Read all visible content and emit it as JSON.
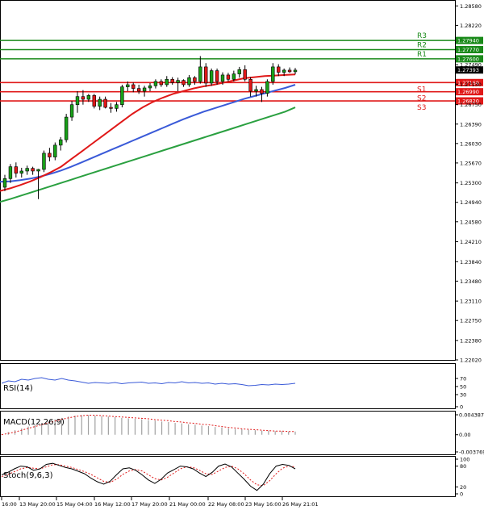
{
  "chart_data": [
    {
      "type": "candlestick",
      "panel": "price",
      "ylim": [
        1.2202,
        1.286
      ],
      "y_ticks": [
        "1.28580",
        "1.28220",
        "1.27490",
        "1.27130",
        "1.26750",
        "1.26390",
        "1.26030",
        "1.25670",
        "1.25300",
        "1.24940",
        "1.24580",
        "1.24210",
        "1.23840",
        "1.23480",
        "1.23110",
        "1.22750",
        "1.22380",
        "1.22020"
      ],
      "x_labels": [
        "16:00",
        "13 May 20:00",
        "15 May 04:00",
        "16 May 12:00",
        "17 May 20:00",
        "21 May 00:00",
        "22 May 08:00",
        "23 May 16:00",
        "26 May 21:01"
      ],
      "candles": [
        [
          1.2522,
          1.2545,
          1.2515,
          1.2538
        ],
        [
          1.2538,
          1.2565,
          1.253,
          1.256
        ],
        [
          1.256,
          1.2568,
          1.254,
          1.2548
        ],
        [
          1.2548,
          1.2558,
          1.254,
          1.2552
        ],
        [
          1.2552,
          1.2562,
          1.2545,
          1.2557
        ],
        [
          1.2557,
          1.256,
          1.2545,
          1.2552
        ],
        [
          1.2552,
          1.2556,
          1.25,
          1.2555
        ],
        [
          1.2555,
          1.259,
          1.255,
          1.2585
        ],
        [
          1.2585,
          1.2595,
          1.257,
          1.2578
        ],
        [
          1.2578,
          1.2605,
          1.2572,
          1.26
        ],
        [
          1.26,
          1.2615,
          1.259,
          1.261
        ],
        [
          1.261,
          1.2658,
          1.2605,
          1.2652
        ],
        [
          1.2652,
          1.2682,
          1.2645,
          1.2675
        ],
        [
          1.2675,
          1.27,
          1.266,
          1.269
        ],
        [
          1.269,
          1.2702,
          1.2675,
          1.2685
        ],
        [
          1.2685,
          1.2695,
          1.268,
          1.2692
        ],
        [
          1.2692,
          1.2695,
          1.2668,
          1.2672
        ],
        [
          1.2672,
          1.269,
          1.2665,
          1.2685
        ],
        [
          1.2685,
          1.269,
          1.2668,
          1.267
        ],
        [
          1.267,
          1.2678,
          1.266,
          1.2668
        ],
        [
          1.2668,
          1.268,
          1.2662,
          1.2675
        ],
        [
          1.2675,
          1.2712,
          1.267,
          1.2708
        ],
        [
          1.2708,
          1.2718,
          1.27,
          1.2712
        ],
        [
          1.2712,
          1.2716,
          1.2698,
          1.2705
        ],
        [
          1.2705,
          1.2712,
          1.2695,
          1.27
        ],
        [
          1.27,
          1.271,
          1.269,
          1.2706
        ],
        [
          1.2706,
          1.2715,
          1.27,
          1.271
        ],
        [
          1.271,
          1.2722,
          1.2705,
          1.2718
        ],
        [
          1.2718,
          1.2722,
          1.2708,
          1.2712
        ],
        [
          1.2712,
          1.2728,
          1.2708,
          1.2722
        ],
        [
          1.2722,
          1.2726,
          1.2712,
          1.2716
        ],
        [
          1.2716,
          1.2725,
          1.27,
          1.272
        ],
        [
          1.272,
          1.2722,
          1.2708,
          1.2712
        ],
        [
          1.2712,
          1.273,
          1.2708,
          1.2725
        ],
        [
          1.2725,
          1.2728,
          1.2712,
          1.2718
        ],
        [
          1.2718,
          1.2765,
          1.2714,
          1.2745
        ],
        [
          1.2745,
          1.2752,
          1.2708,
          1.2715
        ],
        [
          1.2715,
          1.2742,
          1.271,
          1.2738
        ],
        [
          1.2738,
          1.2742,
          1.2712,
          1.2718
        ],
        [
          1.2718,
          1.2735,
          1.2712,
          1.273
        ],
        [
          1.273,
          1.2734,
          1.2718,
          1.2722
        ],
        [
          1.2722,
          1.2738,
          1.2718,
          1.2732
        ],
        [
          1.2732,
          1.2745,
          1.2725,
          1.274
        ],
        [
          1.274,
          1.2748,
          1.2718,
          1.2722
        ],
        [
          1.2722,
          1.2726,
          1.269,
          1.27
        ],
        [
          1.27,
          1.271,
          1.269,
          1.2703
        ],
        [
          1.2703,
          1.2708,
          1.268,
          1.2696
        ],
        [
          1.2696,
          1.2722,
          1.269,
          1.2718
        ],
        [
          1.2718,
          1.2752,
          1.2712,
          1.2745
        ],
        [
          1.2745,
          1.275,
          1.2728,
          1.2735
        ],
        [
          1.2735,
          1.2742,
          1.2728,
          1.2739
        ],
        [
          1.2739,
          1.2744,
          1.2734,
          1.2736
        ],
        [
          1.2736,
          1.2743,
          1.2731,
          1.2739
        ]
      ],
      "sma_red": [
        1.2515,
        1.252,
        1.2526,
        1.2533,
        1.2541,
        1.255,
        1.256,
        1.2574,
        1.2588,
        1.2602,
        1.2616,
        1.263,
        1.2644,
        1.2658,
        1.267,
        1.268,
        1.2688,
        1.2695,
        1.27,
        1.2705,
        1.2709,
        1.2712,
        1.2716,
        1.272,
        1.2724,
        1.2726,
        1.2728,
        1.2729,
        1.273,
        1.2731
      ],
      "sma_blue": [
        1.2532,
        1.2533,
        1.2535,
        1.2538,
        1.2542,
        1.2547,
        1.2553,
        1.256,
        1.2568,
        1.2576,
        1.2584,
        1.2592,
        1.26,
        1.2608,
        1.2616,
        1.2624,
        1.2632,
        1.264,
        1.2648,
        1.2655,
        1.2662,
        1.2668,
        1.2674,
        1.268,
        1.2686,
        1.2691,
        1.2696,
        1.2701,
        1.2706,
        1.2712
      ],
      "sma_green": [
        1.2495,
        1.25,
        1.2506,
        1.2512,
        1.2518,
        1.2524,
        1.253,
        1.2536,
        1.2542,
        1.2548,
        1.2554,
        1.256,
        1.2566,
        1.2572,
        1.2578,
        1.2584,
        1.259,
        1.2596,
        1.2602,
        1.2608,
        1.2614,
        1.262,
        1.2626,
        1.2632,
        1.2638,
        1.2644,
        1.265,
        1.2656,
        1.2662,
        1.267
      ],
      "levels": [
        {
          "name": "R3",
          "value": 1.2794,
          "label": "1.27940",
          "color": "#1a8a1a"
        },
        {
          "name": "R2",
          "value": 1.2777,
          "label": "1.27770",
          "color": "#1a8a1a"
        },
        {
          "name": "R1",
          "value": 1.276,
          "label": "1.27600",
          "color": "#1a8a1a"
        },
        {
          "name": "S1",
          "value": 1.2716,
          "label": "1.27160",
          "color": "#e01818"
        },
        {
          "name": "S2",
          "value": 1.2699,
          "label": "1.26990",
          "color": "#e01818"
        },
        {
          "name": "S3",
          "value": 1.2682,
          "label": "1.26820",
          "color": "#e01818"
        }
      ],
      "current_price": {
        "value": 1.27393,
        "label": "1.27393",
        "color": "#000000"
      },
      "colors": {
        "bull": "#18a018",
        "bear": "#e01818",
        "wick": "#000000",
        "sma_red": "#e01818",
        "sma_blue": "#3a5ad8",
        "sma_green": "#2aa040"
      }
    },
    {
      "type": "line",
      "panel": "rsi",
      "label": "RSI(14)",
      "ylim": [
        0,
        100
      ],
      "y_ticks": [
        "70",
        "50",
        "30",
        "0"
      ],
      "values": [
        58,
        64,
        62,
        68,
        66,
        70,
        72,
        68,
        66,
        70,
        66,
        64,
        61,
        58,
        60,
        59,
        58,
        60,
        57,
        59,
        60,
        61,
        58,
        59,
        57,
        60,
        59,
        62,
        59,
        60,
        58,
        59,
        56,
        58,
        56,
        57,
        55,
        52,
        53,
        55,
        54,
        56,
        55,
        56,
        58
      ],
      "color": "#3a5ad8"
    },
    {
      "type": "bar",
      "panel": "macd",
      "label": "MACD(12,26,9)",
      "ylim": [
        -0.003769,
        0.004387
      ],
      "y_ticks": [
        "0.004387",
        "0.00",
        "-0.003769"
      ],
      "histogram": [
        0.0002,
        0.0006,
        0.001,
        0.0014,
        0.0018,
        0.0022,
        0.0026,
        0.003,
        0.0034,
        0.0037,
        0.004,
        0.0042,
        0.0043,
        0.0043,
        0.0042,
        0.0041,
        0.004,
        0.0039,
        0.0037,
        0.0036,
        0.0035,
        0.0034,
        0.0032,
        0.0031,
        0.0029,
        0.0028,
        0.0026,
        0.0025,
        0.0023,
        0.0022,
        0.002,
        0.0019,
        0.0017,
        0.0016,
        0.0014,
        0.0013,
        0.0012,
        0.0011,
        0.001,
        0.0009,
        0.0009,
        0.0008,
        0.0008,
        0.0007,
        0.0007
      ],
      "signal": [
        0.0,
        0.0003,
        0.0006,
        0.001,
        0.0014,
        0.0018,
        0.0022,
        0.0026,
        0.003,
        0.0034,
        0.0037,
        0.004,
        0.0042,
        0.0043,
        0.0043,
        0.0042,
        0.0041,
        0.004,
        0.0039,
        0.0038,
        0.0037,
        0.0036,
        0.0035,
        0.0033,
        0.0032,
        0.0031,
        0.0029,
        0.0028,
        0.0026,
        0.0025,
        0.0023,
        0.0022,
        0.002,
        0.0018,
        0.0016,
        0.0015,
        0.0013,
        0.0012,
        0.0011,
        0.001,
        0.0009,
        0.0008,
        0.0008,
        0.0007,
        0.0007
      ],
      "hist_color": "#a0a0a0",
      "signal_color": "#e01818"
    },
    {
      "type": "line",
      "panel": "stoch",
      "label": "Stoch(9,6,3)",
      "ylim": [
        0,
        100
      ],
      "y_ticks": [
        "100",
        "80",
        "20",
        "0"
      ],
      "main": [
        55,
        62,
        72,
        80,
        78,
        68,
        72,
        85,
        88,
        82,
        76,
        72,
        65,
        58,
        45,
        35,
        28,
        36,
        55,
        72,
        75,
        68,
        55,
        40,
        30,
        42,
        60,
        70,
        80,
        78,
        72,
        60,
        50,
        62,
        80,
        86,
        78,
        60,
        42,
        22,
        10,
        28,
        58,
        80,
        85,
        82,
        72
      ],
      "signal": [
        50,
        56,
        64,
        72,
        76,
        74,
        72,
        78,
        84,
        84,
        80,
        76,
        70,
        64,
        56,
        46,
        36,
        33,
        42,
        56,
        66,
        70,
        66,
        55,
        44,
        40,
        48,
        60,
        72,
        78,
        76,
        68,
        58,
        56,
        66,
        76,
        80,
        72,
        58,
        40,
        26,
        24,
        38,
        58,
        74,
        80,
        78
      ],
      "main_color": "#000000",
      "signal_color": "#e01818"
    }
  ]
}
